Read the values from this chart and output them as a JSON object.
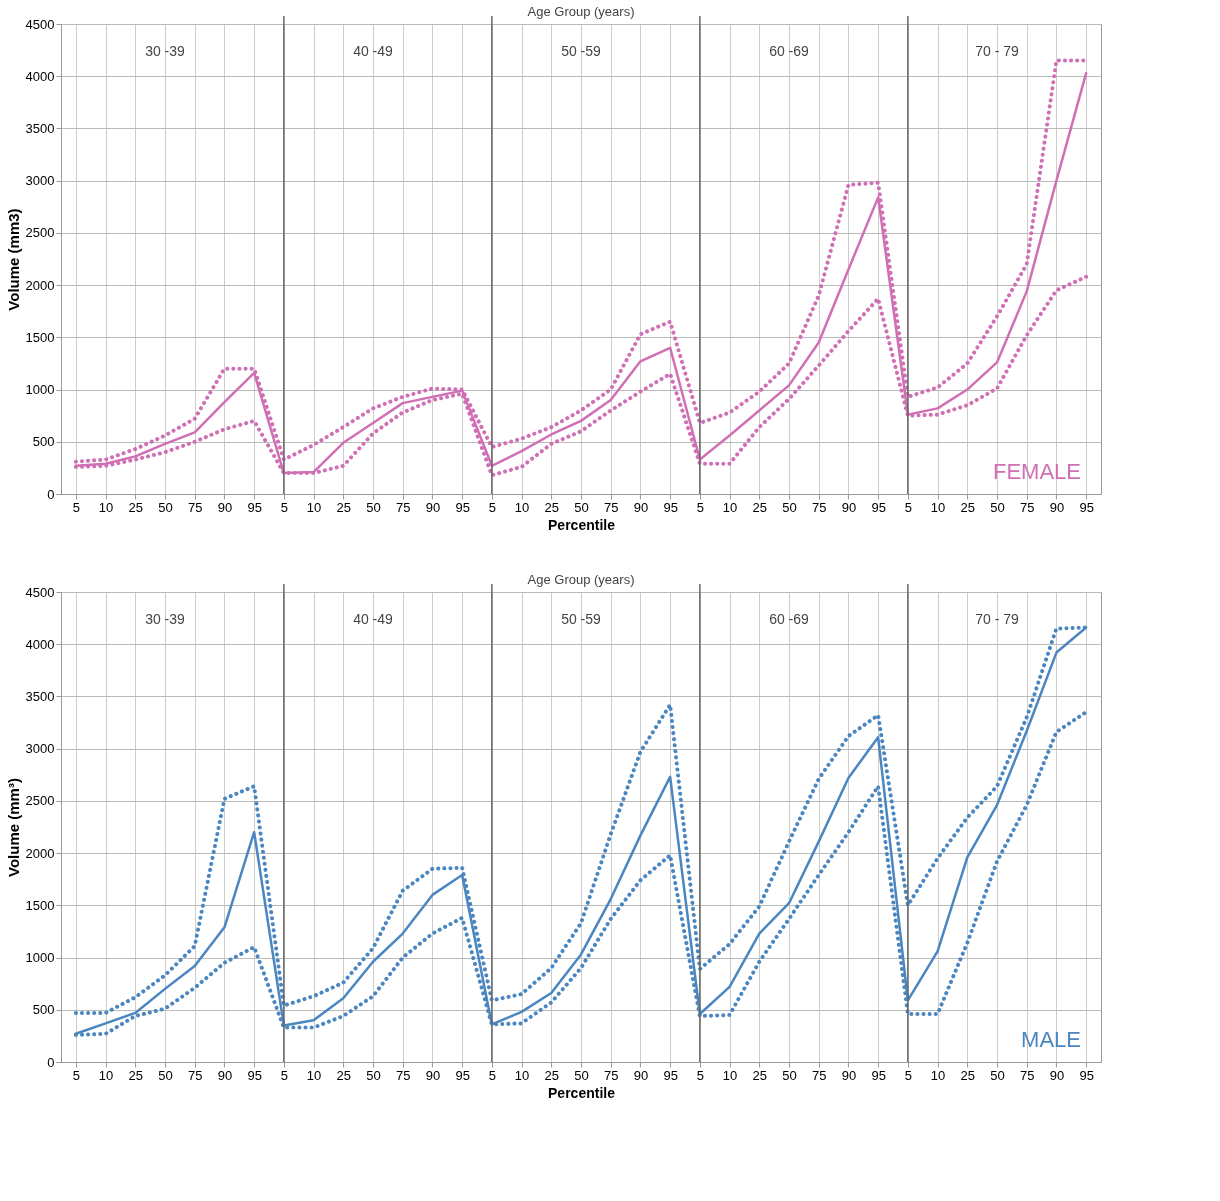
{
  "chart_data": [
    {
      "type": "line",
      "xlabel": "Percentile",
      "ylabel": "Volume (mm3)",
      "categories": [
        "5",
        "10",
        "25",
        "50",
        "75",
        "90",
        "95",
        "5",
        "10",
        "25",
        "50",
        "75",
        "90",
        "95",
        "5",
        "10",
        "25",
        "50",
        "75",
        "90",
        "95",
        "5",
        "10",
        "25",
        "50",
        "75",
        "90",
        "95",
        "5",
        "10",
        "25",
        "50",
        "75",
        "90",
        "95"
      ],
      "annotations": [
        "Age Group (years)",
        "30 -39",
        "40 -49",
        "50 -59",
        "60 -69",
        "70 - 79",
        "FEMALE"
      ],
      "ylim": [
        0,
        4500
      ],
      "yticks": [
        0,
        500,
        1000,
        1500,
        2000,
        2500,
        3000,
        3500,
        4000,
        4500
      ],
      "grid": true,
      "series": [
        {
          "color": "#d16fb5",
          "line_style": "solid",
          "values": [
            270,
            290,
            360,
            480,
            590,
            880,
            1160,
            200,
            210,
            490,
            680,
            870,
            930,
            990,
            270,
            410,
            570,
            700,
            900,
            1270,
            1400,
            330,
            560,
            800,
            1040,
            1450,
            2150,
            2840,
            760,
            820,
            1000,
            1260,
            1940,
            3000,
            4030
          ]
        },
        {
          "color": "#d16fb5",
          "line_style": "dotted",
          "values": [
            310,
            330,
            430,
            560,
            720,
            1200,
            1200,
            330,
            470,
            640,
            820,
            930,
            1010,
            1000,
            450,
            530,
            640,
            800,
            1000,
            1530,
            1650,
            680,
            780,
            980,
            1250,
            1900,
            2960,
            2980,
            930,
            1020,
            1250,
            1700,
            2200,
            4150,
            4150
          ]
        },
        {
          "color": "#d16fb5",
          "line_style": "dotted",
          "values": [
            260,
            270,
            330,
            400,
            500,
            620,
            700,
            200,
            200,
            270,
            580,
            780,
            900,
            960,
            180,
            260,
            480,
            600,
            800,
            980,
            1150,
            290,
            290,
            640,
            910,
            1230,
            1560,
            1870,
            750,
            760,
            850,
            1010,
            1520,
            1950,
            2080
          ]
        }
      ]
    },
    {
      "type": "line",
      "xlabel": "Percentile",
      "ylabel": "Volume (mm³)",
      "categories": [
        "5",
        "10",
        "25",
        "50",
        "75",
        "90",
        "95",
        "5",
        "10",
        "25",
        "50",
        "75",
        "90",
        "95",
        "5",
        "10",
        "25",
        "50",
        "75",
        "90",
        "95",
        "5",
        "10",
        "25",
        "50",
        "75",
        "90",
        "95",
        "5",
        "10",
        "25",
        "50",
        "75",
        "90",
        "95"
      ],
      "annotations": [
        "Age Group (years)",
        "30 -39",
        "40 -49",
        "50 -59",
        "60 -69",
        "70 - 79",
        "MALE"
      ],
      "ylim": [
        0,
        4500
      ],
      "yticks": [
        0,
        500,
        1000,
        1500,
        2000,
        2500,
        3000,
        3500,
        4000,
        4500
      ],
      "grid": true,
      "series": [
        {
          "color": "#4a86c0",
          "line_style": "solid",
          "values": [
            270,
            370,
            470,
            700,
            920,
            1290,
            2200,
            350,
            400,
            610,
            960,
            1230,
            1600,
            1790,
            360,
            480,
            660,
            1030,
            1560,
            2170,
            2730,
            460,
            720,
            1230,
            1520,
            2110,
            2720,
            3110,
            590,
            1060,
            1960,
            2460,
            3170,
            3920,
            4160
          ]
        },
        {
          "color": "#4a86c0",
          "line_style": "dotted",
          "values": [
            470,
            470,
            620,
            830,
            1110,
            2520,
            2640,
            540,
            630,
            760,
            1090,
            1640,
            1850,
            1860,
            590,
            650,
            900,
            1330,
            2180,
            2970,
            3420,
            890,
            1130,
            1490,
            2110,
            2710,
            3120,
            3320,
            1500,
            1950,
            2340,
            2640,
            3300,
            4150,
            4160
          ]
        },
        {
          "color": "#4a86c0",
          "line_style": "dotted",
          "values": [
            260,
            270,
            440,
            510,
            710,
            950,
            1100,
            330,
            330,
            440,
            630,
            1000,
            1230,
            1380,
            360,
            370,
            570,
            900,
            1370,
            1740,
            1980,
            440,
            450,
            960,
            1370,
            1790,
            2200,
            2640,
            460,
            460,
            1140,
            1920,
            2460,
            3160,
            3350
          ]
        }
      ]
    }
  ]
}
